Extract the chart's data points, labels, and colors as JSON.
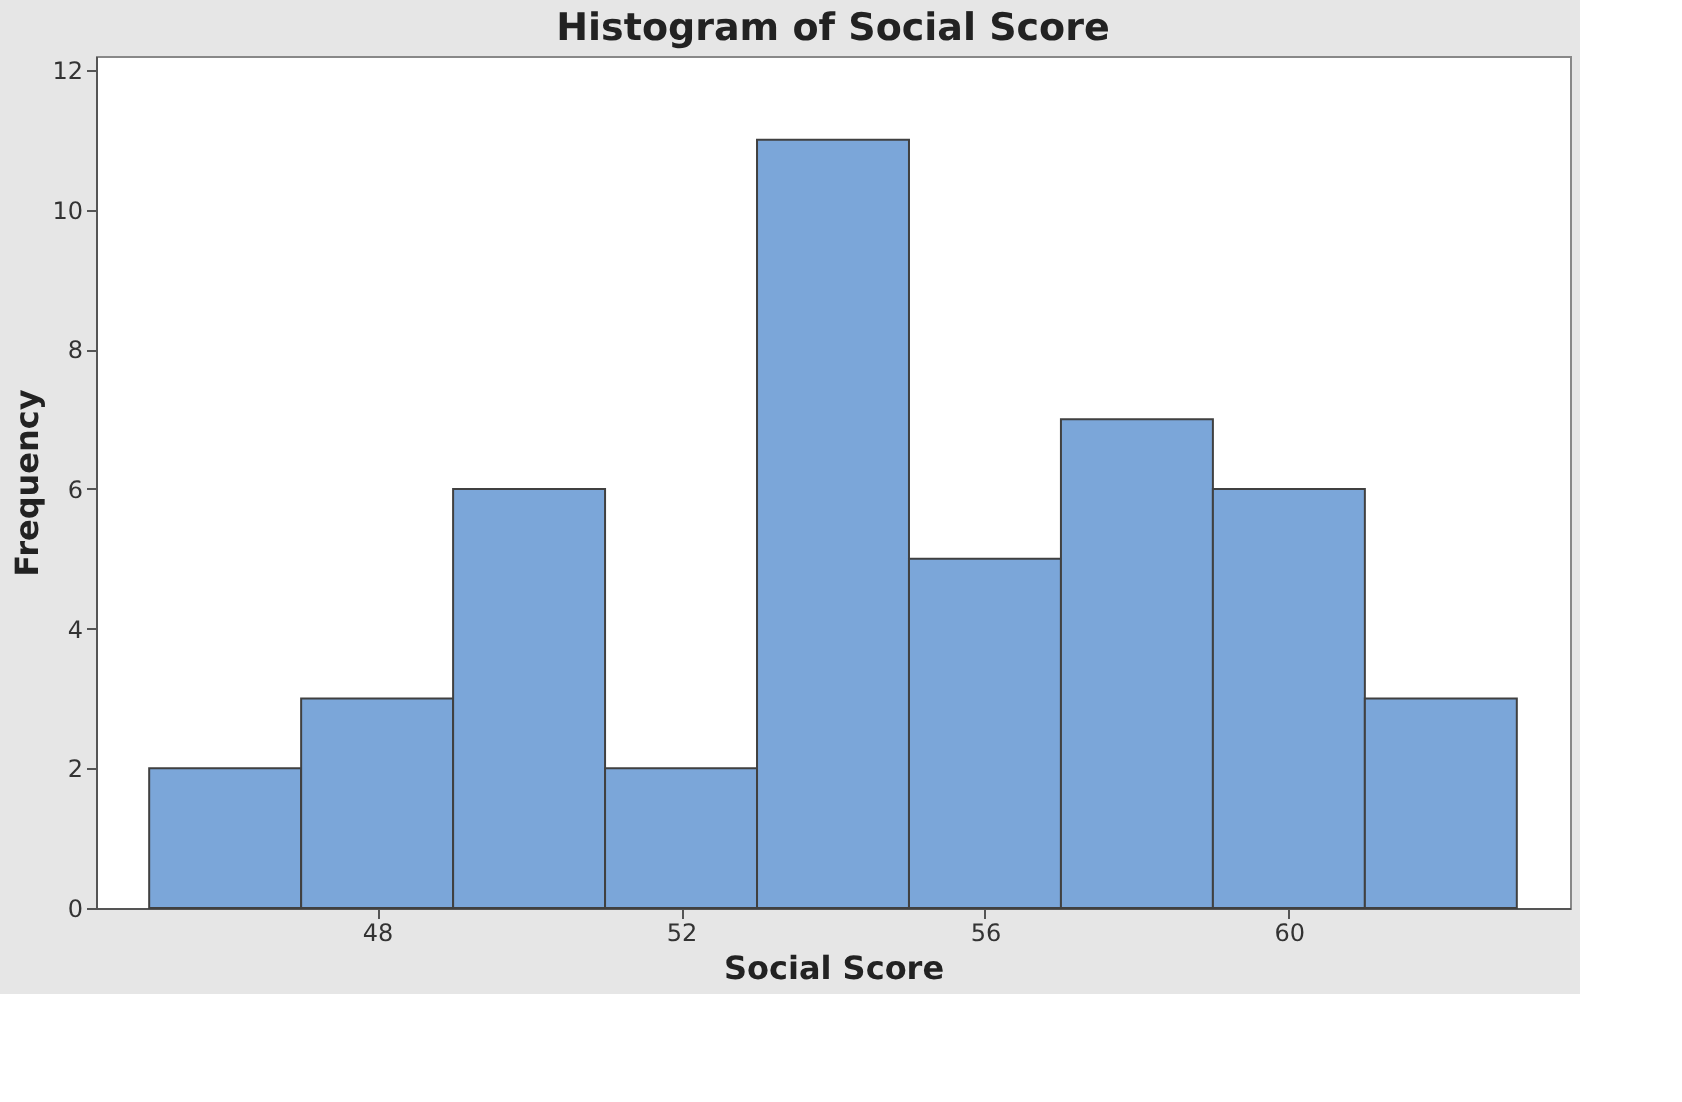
{
  "chart_data": {
    "type": "histogram",
    "title": "Histogram of Social Score",
    "xlabel": "Social Score",
    "ylabel": "Frequency",
    "bins": [
      45,
      47,
      49,
      51,
      53,
      55,
      57,
      59,
      61,
      63
    ],
    "values": [
      2,
      3,
      6,
      2,
      11,
      5,
      7,
      6,
      3
    ],
    "color": "#7ba6d9",
    "xlim": [
      44.3,
      63.7
    ],
    "xticks": [
      48,
      52,
      56,
      60
    ],
    "ylim": [
      0,
      12.2
    ],
    "yticks": [
      0,
      2,
      4,
      6,
      8,
      10,
      12
    ],
    "grid": false
  }
}
